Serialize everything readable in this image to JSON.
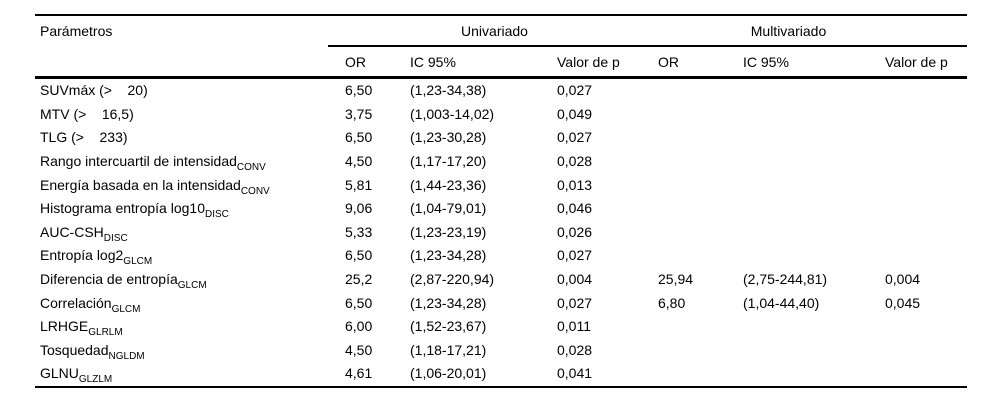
{
  "table": {
    "header": {
      "parameters_label": "Parámetros",
      "univariate_label": "Univariado",
      "multivariate_label": "Multivariado",
      "or_label": "OR",
      "ci_label": "IC 95%",
      "p_label": "Valor de p"
    },
    "rows": [
      {
        "param": "SUVmáx (>    20)",
        "sub": "",
        "u_or": "6,50",
        "u_ic": "(1,23-34,38)",
        "u_p": "0,027",
        "m_or": "",
        "m_ic": "",
        "m_p": ""
      },
      {
        "param": "MTV (>    16,5)",
        "sub": "",
        "u_or": "3,75",
        "u_ic": "(1,003-14,02)",
        "u_p": "0,049",
        "m_or": "",
        "m_ic": "",
        "m_p": ""
      },
      {
        "param": "TLG (>    233)",
        "sub": "",
        "u_or": "6,50",
        "u_ic": "(1,23-30,28)",
        "u_p": "0,027",
        "m_or": "",
        "m_ic": "",
        "m_p": ""
      },
      {
        "param": "Rango intercuartil de intensidad",
        "sub": "CONV",
        "u_or": "4,50",
        "u_ic": "(1,17-17,20)",
        "u_p": "0,028",
        "m_or": "",
        "m_ic": "",
        "m_p": ""
      },
      {
        "param": "Energía basada en la intensidad",
        "sub": "CONV",
        "u_or": "5,81",
        "u_ic": "(1,44-23,36)",
        "u_p": "0,013",
        "m_or": "",
        "m_ic": "",
        "m_p": ""
      },
      {
        "param": "Histograma entropía log10",
        "sub": "DISC",
        "u_or": "9,06",
        "u_ic": "(1,04-79,01)",
        "u_p": "0,046",
        "m_or": "",
        "m_ic": "",
        "m_p": ""
      },
      {
        "param": "AUC-CSH",
        "sub": "DISC",
        "u_or": "5,33",
        "u_ic": "(1,23-23,19)",
        "u_p": "0,026",
        "m_or": "",
        "m_ic": "",
        "m_p": ""
      },
      {
        "param": "Entropía log2",
        "sub": "GLCM",
        "u_or": "6,50",
        "u_ic": "(1,23-34,28)",
        "u_p": "0,027",
        "m_or": "",
        "m_ic": "",
        "m_p": ""
      },
      {
        "param": "Diferencia de entropía",
        "sub": "GLCM",
        "u_or": "25,2",
        "u_ic": "(2,87-220,94)",
        "u_p": "0,004",
        "m_or": "25,94",
        "m_ic": "(2,75-244,81)",
        "m_p": "0,004"
      },
      {
        "param": "Correlación",
        "sub": "GLCM",
        "u_or": "6,50",
        "u_ic": "(1,23-34,28)",
        "u_p": "0,027",
        "m_or": "6,80",
        "m_ic": "(1,04-44,40)",
        "m_p": "0,045"
      },
      {
        "param": "LRHGE",
        "sub": "GLRLM",
        "u_or": "6,00",
        "u_ic": "(1,52-23,67)",
        "u_p": "0,011",
        "m_or": "",
        "m_ic": "",
        "m_p": ""
      },
      {
        "param": "Tosquedad",
        "sub": "NGLDM",
        "u_or": "4,50",
        "u_ic": "(1,18-17,21)",
        "u_p": "0,028",
        "m_or": "",
        "m_ic": "",
        "m_p": ""
      },
      {
        "param": "GLNU",
        "sub": "GLZLM",
        "u_or": "4,61",
        "u_ic": "(1,06-20,01)",
        "u_p": "0,041",
        "m_or": "",
        "m_ic": "",
        "m_p": ""
      }
    ]
  }
}
